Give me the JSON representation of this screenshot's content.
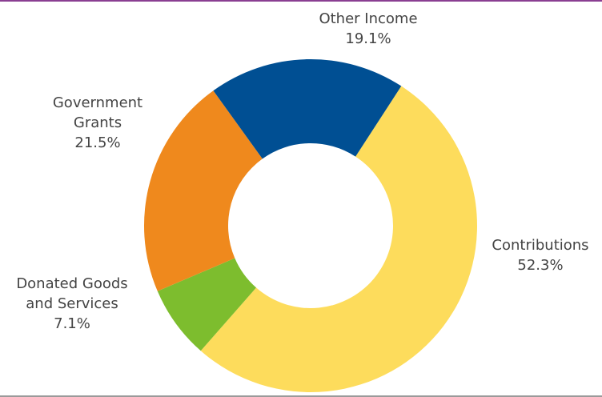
{
  "chart_data": {
    "type": "pie",
    "style": "donut",
    "slices": [
      {
        "label_lines": [
          "Contributions"
        ],
        "value": 52.3,
        "value_text": "52.3%",
        "color": "#fddc5c"
      },
      {
        "label_lines": [
          "Donated Goods",
          "and Services"
        ],
        "value": 7.1,
        "value_text": "7.1%",
        "color": "#7dbd2e"
      },
      {
        "label_lines": [
          "Government",
          "Grants"
        ],
        "value": 21.5,
        "value_text": "21.5%",
        "color": "#ef891d"
      },
      {
        "label_lines": [
          "Other Income"
        ],
        "value": 19.1,
        "value_text": "19.1%",
        "color": "#004f93"
      }
    ]
  },
  "colors": {
    "top_rule": "#8a3f92",
    "bottom_rule": "#9a9a9a",
    "label_text": "#444444"
  }
}
